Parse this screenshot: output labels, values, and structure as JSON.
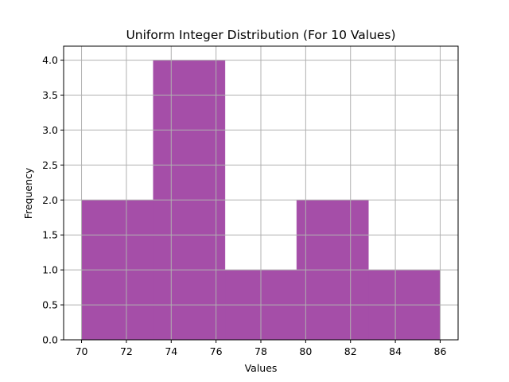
{
  "chart_data": {
    "type": "bar",
    "title": "Uniform Integer Distribution (For 10 Values)",
    "xlabel": "Values",
    "ylabel": "Frequency",
    "bins": [
      {
        "start": 70.0,
        "end": 73.2,
        "count": 2
      },
      {
        "start": 73.2,
        "end": 76.4,
        "count": 4
      },
      {
        "start": 76.4,
        "end": 79.6,
        "count": 1
      },
      {
        "start": 79.6,
        "end": 82.8,
        "count": 2
      },
      {
        "start": 82.8,
        "end": 86.0,
        "count": 1
      }
    ],
    "xlim": [
      69.2,
      86.8
    ],
    "ylim": [
      0,
      4.2
    ],
    "xticks": [
      70,
      72,
      74,
      76,
      78,
      80,
      82,
      84,
      86
    ],
    "yticks": [
      0.0,
      0.5,
      1.0,
      1.5,
      2.0,
      2.5,
      3.0,
      3.5,
      4.0
    ],
    "ytick_labels": [
      "0.0",
      "0.5",
      "1.0",
      "1.5",
      "2.0",
      "2.5",
      "3.0",
      "3.5",
      "4.0"
    ],
    "grid": true,
    "bar_color": "#a54ea8",
    "bar_edge_color": "#a54ea8"
  }
}
